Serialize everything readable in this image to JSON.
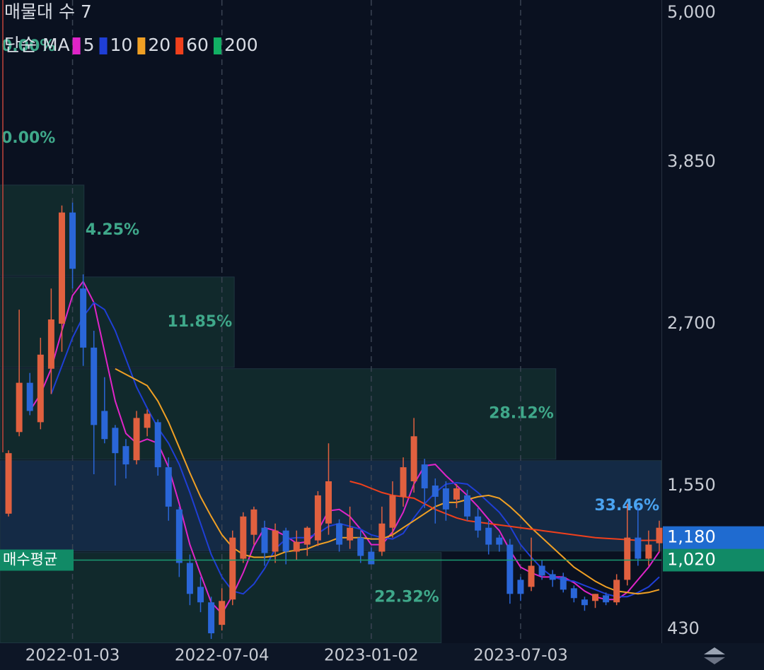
{
  "chart_data": {
    "type": "candlestick",
    "title": "매물대 수 7",
    "legend_title": "단순 MA",
    "categories": [
      null,
      null,
      null,
      null,
      null,
      null,
      "2022-01-03",
      null,
      null,
      null,
      null,
      null,
      null,
      null,
      null,
      null,
      null,
      null,
      null,
      null,
      "2022-07-04",
      null,
      null,
      null,
      null,
      null,
      null,
      null,
      null,
      null,
      null,
      null,
      null,
      null,
      "2023-01-02",
      null,
      null,
      null,
      null,
      null,
      null,
      null,
      null,
      null,
      null,
      null,
      null,
      null,
      "2023-07-03",
      null,
      null,
      null,
      null,
      null,
      null,
      null,
      null,
      null,
      null,
      null,
      null,
      null
    ],
    "open": [
      1350,
      1930,
      2280,
      2000,
      2380,
      2700,
      3490,
      2950,
      2530,
      2080,
      1960,
      1830,
      1730,
      1960,
      2000,
      1680,
      1380,
      1000,
      830,
      720,
      560,
      740,
      1030,
      1200,
      1250,
      1080,
      1230,
      1080,
      1130,
      1160,
      1280,
      1280,
      1160,
      1180,
      1080,
      1080,
      1250,
      1470,
      1580,
      1700,
      1550,
      1530,
      1450,
      1480,
      1330,
      1250,
      1180,
      1130,
      880,
      830,
      980,
      920,
      900,
      820,
      740,
      730,
      770,
      720,
      880,
      1180,
      1030,
      1140
    ],
    "high": [
      1800,
      2800,
      2350,
      2600,
      2950,
      3540,
      3560,
      3050,
      2650,
      2320,
      1980,
      1880,
      2080,
      2090,
      2020,
      1750,
      1400,
      1060,
      900,
      760,
      820,
      1230,
      1360,
      1400,
      1300,
      1280,
      1250,
      1230,
      1260,
      1510,
      1850,
      1310,
      1400,
      1230,
      1110,
      1400,
      1580,
      1750,
      2030,
      1740,
      1600,
      1580,
      1560,
      1520,
      1390,
      1300,
      1200,
      1170,
      900,
      1180,
      1020,
      950,
      930,
      840,
      760,
      780,
      790,
      920,
      1420,
      1400,
      1230,
      1300
    ],
    "low": [
      1330,
      1900,
      2050,
      1950,
      2200,
      2500,
      2950,
      2400,
      1630,
      1850,
      1550,
      1600,
      1700,
      1900,
      1620,
      1300,
      900,
      700,
      650,
      460,
      520,
      700,
      1000,
      1130,
      980,
      1000,
      990,
      1020,
      1050,
      1120,
      1200,
      1080,
      1100,
      1000,
      990,
      1050,
      1180,
      1400,
      1500,
      1390,
      1280,
      1300,
      1390,
      1300,
      1180,
      1060,
      1080,
      710,
      730,
      800,
      880,
      830,
      790,
      720,
      660,
      680,
      700,
      700,
      840,
      980,
      980,
      1080
    ],
    "close": [
      1780,
      2280,
      2080,
      2480,
      2730,
      3490,
      3090,
      2530,
      1980,
      1880,
      1780,
      1700,
      2030,
      2060,
      1680,
      1400,
      1000,
      780,
      720,
      500,
      730,
      1180,
      1330,
      1380,
      1070,
      1230,
      1080,
      1150,
      1250,
      1480,
      1580,
      1130,
      1250,
      1050,
      990,
      1280,
      1480,
      1680,
      1900,
      1530,
      1470,
      1380,
      1530,
      1330,
      1230,
      1130,
      1130,
      780,
      780,
      980,
      910,
      880,
      810,
      750,
      700,
      780,
      720,
      880,
      1180,
      1030,
      1130,
      1250
    ],
    "up_color": "#e0603f",
    "down_color": "#2a66d8",
    "series": [
      {
        "name": "5",
        "color": "#e024c8",
        "values": [
          null,
          null,
          2080,
          2200,
          2380,
          2650,
          2900,
          3000,
          2850,
          2500,
          2150,
          1920,
          1850,
          1880,
          1850,
          1680,
          1420,
          1130,
          920,
          720,
          640,
          770,
          930,
          1120,
          1250,
          1230,
          1190,
          1140,
          1150,
          1230,
          1370,
          1380,
          1330,
          1240,
          1130,
          1130,
          1220,
          1360,
          1560,
          1690,
          1700,
          1620,
          1550,
          1480,
          1400,
          1310,
          1230,
          1090,
          970,
          930,
          900,
          900,
          900,
          860,
          800,
          760,
          740,
          740,
          790,
          880,
          970,
          1080
        ]
      },
      {
        "name": "10",
        "color": "#1f3fd6",
        "values": [
          null,
          null,
          null,
          null,
          2200,
          2400,
          2600,
          2750,
          2850,
          2800,
          2650,
          2450,
          2250,
          2100,
          1960,
          1850,
          1700,
          1500,
          1280,
          1060,
          900,
          800,
          780,
          850,
          960,
          1100,
          1170,
          1180,
          1180,
          1210,
          1260,
          1280,
          1260,
          1240,
          1200,
          1180,
          1170,
          1210,
          1320,
          1420,
          1500,
          1560,
          1570,
          1560,
          1500,
          1430,
          1360,
          1260,
          1130,
          1040,
          960,
          900,
          880,
          870,
          840,
          810,
          780,
          760,
          760,
          790,
          830,
          900
        ]
      },
      {
        "name": "20",
        "color": "#f0a024",
        "values": [
          null,
          null,
          null,
          null,
          null,
          null,
          null,
          null,
          null,
          null,
          2380,
          2340,
          2300,
          2260,
          2150,
          2000,
          1820,
          1640,
          1470,
          1330,
          1200,
          1110,
          1060,
          1040,
          1040,
          1050,
          1080,
          1090,
          1100,
          1130,
          1150,
          1180,
          1180,
          1180,
          1170,
          1170,
          1200,
          1250,
          1300,
          1350,
          1400,
          1430,
          1430,
          1450,
          1470,
          1480,
          1460,
          1400,
          1330,
          1250,
          1180,
          1110,
          1040,
          970,
          920,
          870,
          830,
          800,
          790,
          780,
          790,
          810
        ]
      },
      {
        "name": "60",
        "color": "#f0401c",
        "values": [
          null,
          null,
          null,
          null,
          null,
          null,
          null,
          null,
          null,
          null,
          null,
          null,
          null,
          null,
          null,
          null,
          null,
          null,
          null,
          null,
          null,
          null,
          null,
          null,
          null,
          null,
          null,
          null,
          null,
          null,
          null,
          null,
          1580,
          1560,
          1530,
          1500,
          1480,
          1470,
          1460,
          1420,
          1380,
          1350,
          1320,
          1300,
          1290,
          1280,
          1270,
          1260,
          1250,
          1240,
          1230,
          1220,
          1210,
          1200,
          1190,
          1180,
          1175,
          1170,
          1165,
          1160,
          1160,
          1160
        ]
      },
      {
        "name": "200",
        "color": "#12b064",
        "values": [
          null,
          null,
          null,
          null,
          null,
          null,
          null,
          null,
          null,
          null,
          null,
          null,
          null,
          null,
          null,
          null,
          null,
          null,
          null,
          null,
          null,
          null,
          null,
          null,
          null,
          null,
          null,
          null,
          null,
          null,
          null,
          null,
          null,
          null,
          null,
          null,
          null,
          null,
          null,
          null,
          null,
          null,
          null,
          null,
          null,
          null,
          null,
          null,
          null,
          null,
          null,
          null,
          null,
          null,
          null,
          null,
          null,
          null,
          null,
          null,
          null,
          null
        ]
      }
    ],
    "volume_profile": {
      "bounds": [
        4995,
        4342,
        3690,
        3037,
        2385,
        1732,
        1079,
        427
      ],
      "values": [
        0.0,
        0.0,
        4.25,
        11.85,
        28.12,
        33.46,
        22.32
      ],
      "value_labels": [
        "0.00%",
        "0.00%",
        "4.25%",
        "11.85%",
        "28.12%",
        "33.46%",
        "22.32%"
      ]
    },
    "current_price": {
      "value": 1180,
      "label": "1,180",
      "color": "#1f6bd0"
    },
    "average_price": {
      "name": "매수평균",
      "value": 1020,
      "label": "1,020",
      "color": "#118a66"
    },
    "ylim": [
      430,
      5000
    ],
    "yticks": [
      {
        "value": 5000,
        "label": "5,000"
      },
      {
        "value": 3850,
        "label": "3,850"
      },
      {
        "value": 2700,
        "label": "2,700"
      },
      {
        "value": 1550,
        "label": "1,550"
      },
      430
    ]
  }
}
